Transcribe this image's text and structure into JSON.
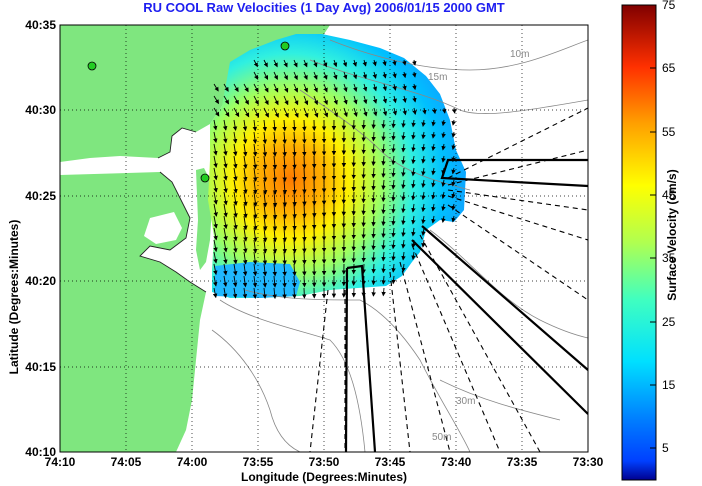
{
  "title": "RU COOL Raw Velocities (1 Day Avg) 2006/01/15 2000 GMT",
  "map": {
    "x_axis_label": "Longitude (Degrees:Minutes)",
    "y_axis_label": "Latitude (Degrees:Minutes)",
    "x_ticks": [
      "74:10",
      "74:05",
      "74:00",
      "73:55",
      "73:50",
      "73:45",
      "73:40",
      "73:35",
      "73:30"
    ],
    "y_ticks": [
      "40:35",
      "40:30",
      "40:25",
      "40:20",
      "40:15",
      "40:10"
    ],
    "depth_contour_labels": [
      "10m",
      "15m",
      "30m",
      "50m"
    ],
    "grid": true,
    "colors": {
      "land": "#7fe67f",
      "sea": "#ffffff",
      "title": "#1e1ef0",
      "station_marker": "#22cc22"
    }
  },
  "colorbar": {
    "label": "Surface Velocity (cm/s)",
    "ticks": [
      "75",
      "65",
      "55",
      "45",
      "35",
      "25",
      "15",
      "5"
    ],
    "range": [
      0,
      75
    ],
    "colormap": "jet"
  }
}
